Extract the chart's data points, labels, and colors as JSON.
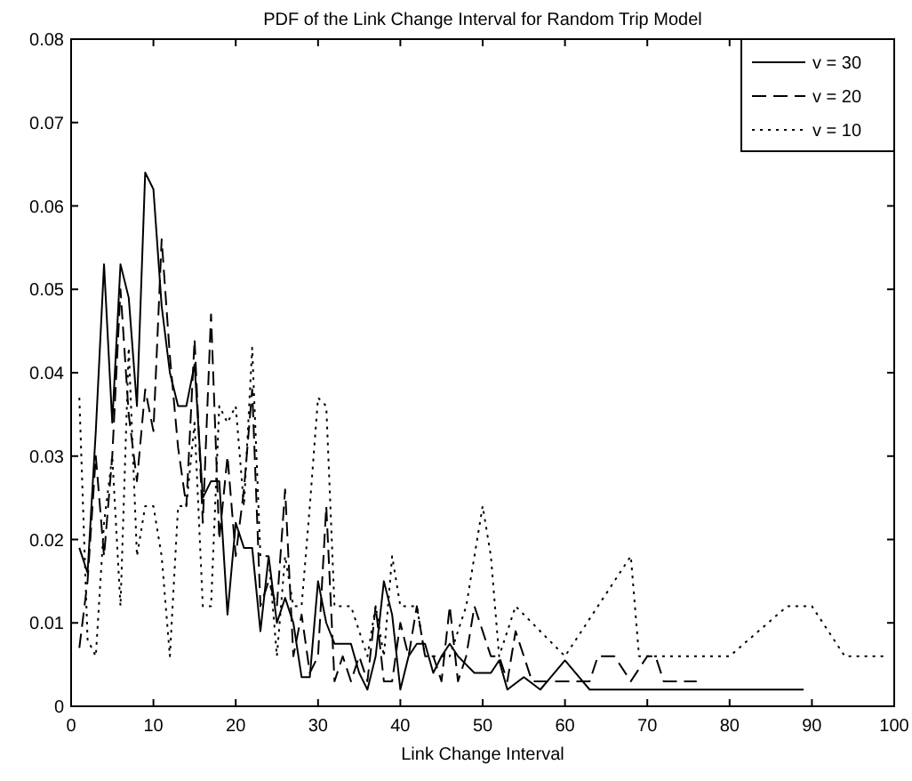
{
  "chart_data": {
    "type": "line",
    "title": "PDF of the Link Change Interval for Random Trip Model",
    "xlabel": "Link Change Interval",
    "xlim": [
      0,
      100
    ],
    "xticks": [
      0,
      10,
      20,
      30,
      40,
      50,
      60,
      70,
      80,
      90,
      100
    ],
    "ylim": [
      0,
      0.08
    ],
    "yticks": [
      0,
      0.01,
      0.02,
      0.03,
      0.04,
      0.05,
      0.06,
      0.07,
      0.08
    ],
    "grid": false,
    "legend": "top right",
    "marker": "none",
    "series": [
      {
        "name": "v = 30",
        "color": "#000000",
        "line_style": "solid",
        "x": [
          1,
          2,
          3,
          4,
          5,
          6,
          7,
          8,
          9,
          10,
          11,
          12,
          13,
          14,
          15,
          16,
          17,
          18,
          19,
          20,
          21,
          22,
          23,
          24,
          25,
          26,
          27,
          28,
          29,
          30,
          31,
          32,
          33,
          34,
          35,
          36,
          37,
          38,
          39,
          40,
          41,
          42,
          43,
          44,
          45,
          46,
          47,
          48,
          49,
          50,
          51,
          52,
          53,
          55,
          57,
          60,
          63,
          89
        ],
        "values": [
          0.019,
          0.016,
          0.033,
          0.053,
          0.034,
          0.053,
          0.049,
          0.036,
          0.064,
          0.062,
          0.048,
          0.04,
          0.036,
          0.036,
          0.041,
          0.025,
          0.027,
          0.027,
          0.011,
          0.022,
          0.019,
          0.019,
          0.009,
          0.018,
          0.01,
          0.013,
          0.01,
          0.0035,
          0.0035,
          0.015,
          0.01,
          0.0075,
          0.0075,
          0.0075,
          0.004,
          0.002,
          0.006,
          0.015,
          0.011,
          0.002,
          0.006,
          0.0075,
          0.0075,
          0.004,
          0.006,
          0.0075,
          0.006,
          0.005,
          0.004,
          0.004,
          0.004,
          0.0055,
          0.002,
          0.0035,
          0.002,
          0.0055,
          0.002,
          0.002
        ]
      },
      {
        "name": "v = 20",
        "color": "#000000",
        "line_style": "dashed",
        "x": [
          1,
          2,
          3,
          4,
          5,
          6,
          7,
          8,
          9,
          10,
          11,
          12,
          13,
          14,
          15,
          16,
          17,
          18,
          19,
          20,
          21,
          22,
          23,
          24,
          25,
          26,
          27,
          28,
          29,
          30,
          31,
          32,
          33,
          34,
          35,
          36,
          37,
          38,
          39,
          40,
          41,
          42,
          43,
          44,
          45,
          46,
          47,
          48,
          49,
          50,
          51,
          52,
          53,
          54,
          55,
          56,
          57,
          60,
          63,
          64,
          66,
          68,
          70,
          71,
          72,
          76
        ],
        "values": [
          0.007,
          0.015,
          0.03,
          0.018,
          0.03,
          0.05,
          0.035,
          0.027,
          0.038,
          0.033,
          0.056,
          0.042,
          0.031,
          0.024,
          0.044,
          0.022,
          0.047,
          0.02,
          0.03,
          0.018,
          0.026,
          0.038,
          0.012,
          0.015,
          0.012,
          0.026,
          0.006,
          0.011,
          0.004,
          0.006,
          0.024,
          0.003,
          0.006,
          0.003,
          0.006,
          0.003,
          0.012,
          0.003,
          0.003,
          0.01,
          0.006,
          0.012,
          0.006,
          0.006,
          0.003,
          0.012,
          0.003,
          0.006,
          0.012,
          0.009,
          0.006,
          0.006,
          0.003,
          0.009,
          0.006,
          0.003,
          0.003,
          0.003,
          0.003,
          0.006,
          0.006,
          0.003,
          0.006,
          0.006,
          0.003,
          0.003
        ]
      },
      {
        "name": "v = 10",
        "color": "#000000",
        "line_style": "dotted",
        "x": [
          1,
          2,
          3,
          4,
          5,
          6,
          7,
          8,
          9,
          10,
          11,
          12,
          13,
          14,
          15,
          16,
          17,
          18,
          19,
          20,
          21,
          22,
          23,
          24,
          25,
          26,
          27,
          28,
          29,
          30,
          31,
          32,
          34,
          36,
          37,
          38,
          39,
          40,
          42,
          43,
          46,
          48,
          50,
          51,
          52,
          54,
          60,
          68,
          69,
          80,
          87,
          90,
          94,
          99
        ],
        "values": [
          0.037,
          0.008,
          0.006,
          0.022,
          0.03,
          0.012,
          0.043,
          0.018,
          0.024,
          0.024,
          0.018,
          0.006,
          0.024,
          0.024,
          0.034,
          0.012,
          0.012,
          0.036,
          0.034,
          0.036,
          0.024,
          0.043,
          0.018,
          0.018,
          0.006,
          0.018,
          0.012,
          0.012,
          0.024,
          0.037,
          0.036,
          0.012,
          0.012,
          0.006,
          0.012,
          0.006,
          0.018,
          0.012,
          0.012,
          0.006,
          0.006,
          0.012,
          0.024,
          0.018,
          0.006,
          0.012,
          0.006,
          0.018,
          0.006,
          0.006,
          0.012,
          0.012,
          0.006,
          0.006
        ]
      }
    ]
  }
}
